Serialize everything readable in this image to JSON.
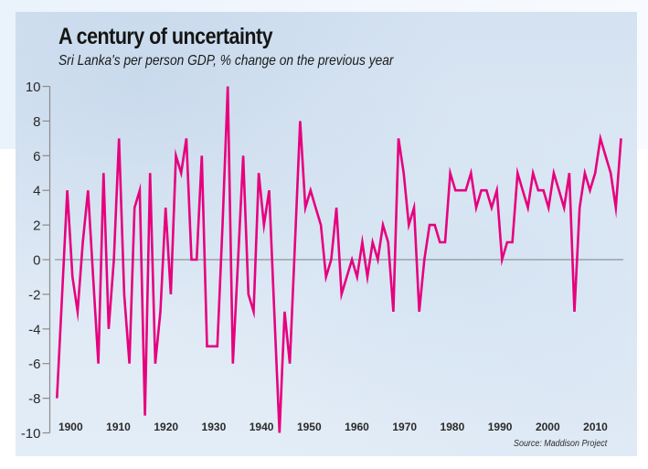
{
  "chart_data": {
    "type": "line",
    "title": "A century of uncertainty",
    "subtitle": "Sri Lanka's per person GDP, % change on the previous year",
    "source": "Source: Maddison Project",
    "xlabel": "",
    "ylabel": "",
    "x_range_years": [
      1897,
      2015
    ],
    "xlim": [
      1897,
      2015
    ],
    "ylim": [
      -10,
      10
    ],
    "x_ticks": [
      1900,
      1910,
      1920,
      1930,
      1940,
      1950,
      1960,
      1970,
      1980,
      1990,
      2000,
      2010
    ],
    "x_tick_labels": [
      "1900",
      "1910",
      "1920",
      "1930",
      "1940",
      "1950",
      "1960",
      "1970",
      "1980",
      "1990",
      "2000",
      "2010"
    ],
    "y_ticks": [
      10,
      8,
      6,
      4,
      2,
      0,
      -2,
      -4,
      -6,
      -8,
      -10
    ],
    "y_tick_labels": [
      "10",
      "8",
      "6",
      "4",
      "2",
      "0",
      "-2",
      "-4",
      "-6",
      "-8",
      "-10"
    ],
    "grid": false,
    "zero_line": true,
    "legend": "none",
    "series": [
      {
        "name": "Per person GDP % change",
        "color": "#e6007e",
        "values": [
          -8,
          -2,
          4,
          -1,
          -3,
          1,
          4,
          -1,
          -6,
          5,
          -4,
          0,
          7,
          -2,
          -6,
          3,
          4,
          -9,
          5,
          -6,
          -3,
          3,
          -2,
          6,
          5,
          7,
          0,
          0,
          6,
          -5,
          -5,
          -5,
          2,
          10,
          -6,
          0,
          6,
          -2,
          -3,
          5,
          2,
          4,
          -3,
          -10,
          -3,
          -6,
          1,
          8,
          3,
          4,
          3,
          2,
          -1,
          0,
          3,
          -2,
          -1,
          0,
          -1,
          1,
          -1,
          1,
          0,
          2,
          1,
          -3,
          7,
          5,
          2,
          3,
          -3,
          0,
          2,
          2,
          1,
          1,
          5,
          4,
          4,
          4,
          5,
          3,
          4,
          4,
          3,
          4,
          0,
          1,
          1,
          5,
          4,
          3,
          5,
          4,
          4,
          3,
          5,
          4,
          3,
          5,
          -3,
          3,
          5,
          4,
          5,
          7,
          6,
          5,
          3,
          7
        ]
      }
    ]
  },
  "colors": {
    "line": "#e6007e",
    "axis": "#8a8a8a",
    "zero_line": "#8f9499",
    "text": "#1a1a1a"
  }
}
